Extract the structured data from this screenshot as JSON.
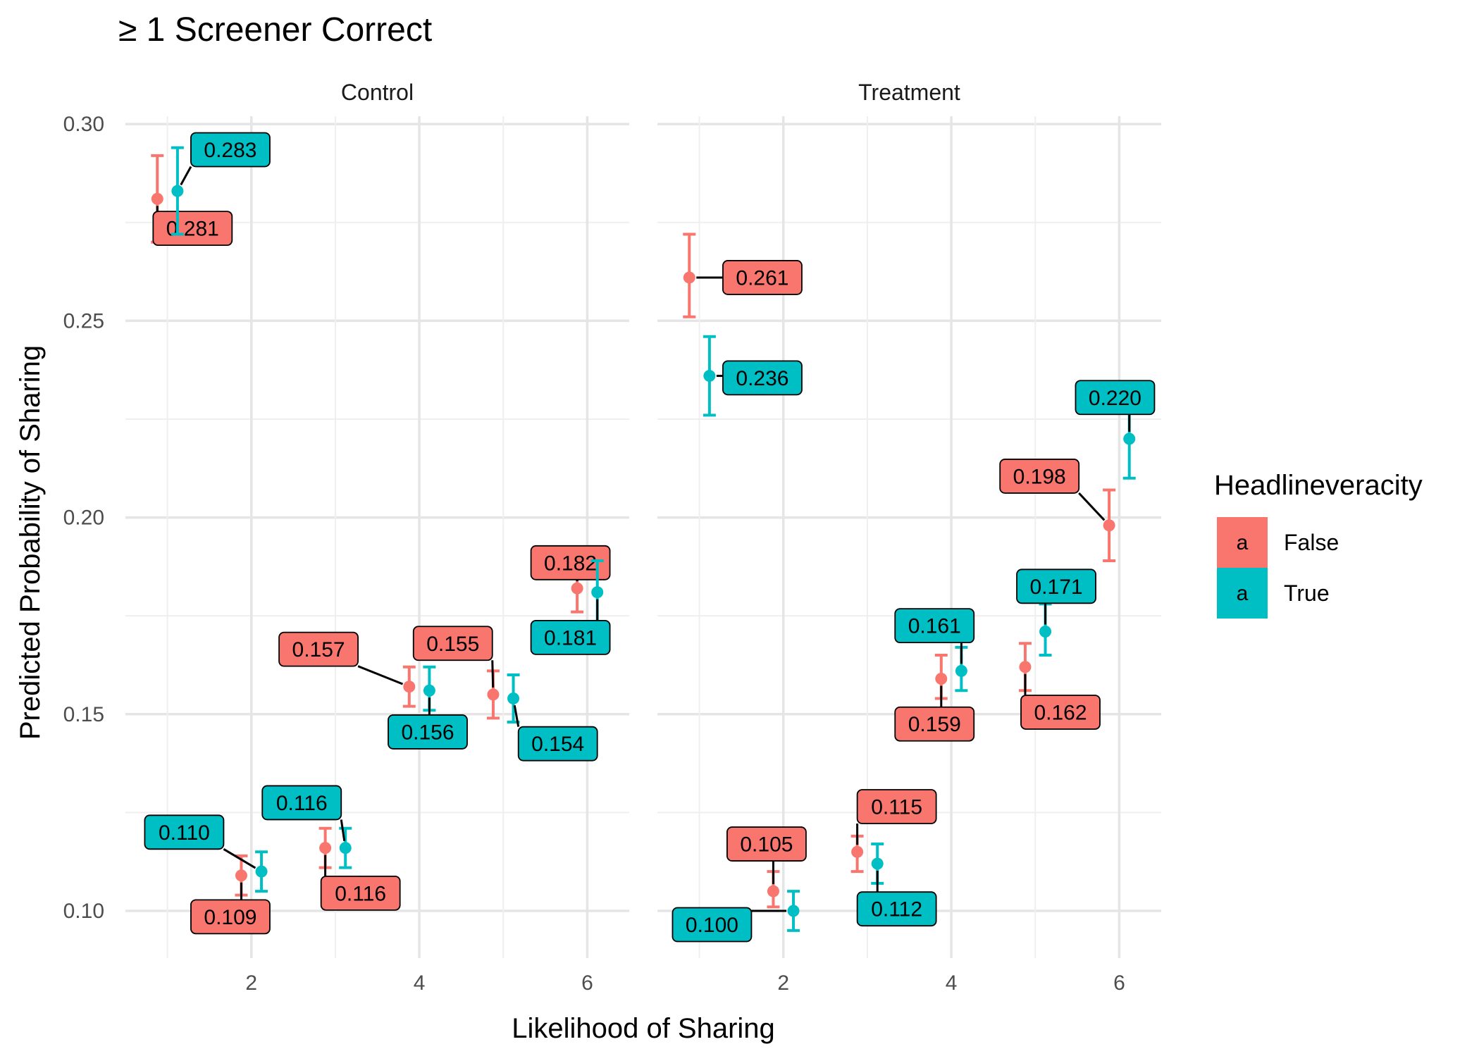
{
  "chart_data": {
    "type": "scatter",
    "title": "≥ 1 Screener Correct",
    "xlabel": "Likelihood of Sharing",
    "ylabel": "Predicted Probability of Sharing",
    "xlim": [
      0.5,
      6.5
    ],
    "ylim": [
      0.088,
      0.302
    ],
    "x_ticks": [
      2,
      4,
      6
    ],
    "x_tick_labels": [
      "2",
      "4",
      "6"
    ],
    "y_ticks": [
      0.1,
      0.15,
      0.2,
      0.25,
      0.3
    ],
    "y_tick_labels": [
      "0.10",
      "0.15",
      "0.20",
      "0.25",
      "0.30"
    ],
    "grid": true,
    "legend": {
      "title": "Headlineveracity",
      "position": "right",
      "key_letter": "a",
      "entries": [
        {
          "name": "False",
          "color": "#F8766D"
        },
        {
          "name": "True",
          "color": "#00BFC4"
        }
      ]
    },
    "panels": [
      {
        "name": "Control",
        "series": [
          {
            "name": "False",
            "color": "#F8766D",
            "points": [
              {
                "x": 1,
                "y": 0.281,
                "lo": 0.27,
                "hi": 0.292,
                "label": "0.281",
                "lx": 1.3,
                "ly": 0.2735
              },
              {
                "x": 2,
                "y": 0.109,
                "lo": 0.104,
                "hi": 0.114,
                "label": "0.109",
                "lx": 1.75,
                "ly": 0.0985
              },
              {
                "x": 3,
                "y": 0.116,
                "lo": 0.111,
                "hi": 0.121,
                "label": "0.116",
                "lx": 3.3,
                "ly": 0.1045
              },
              {
                "x": 4,
                "y": 0.157,
                "lo": 0.152,
                "hi": 0.162,
                "label": "0.157",
                "lx": 2.8,
                "ly": 0.1665
              },
              {
                "x": 5,
                "y": 0.155,
                "lo": 0.149,
                "hi": 0.161,
                "label": "0.155",
                "lx": 4.4,
                "ly": 0.168
              },
              {
                "x": 6,
                "y": 0.182,
                "lo": 0.176,
                "hi": 0.188,
                "label": "0.182",
                "lx": 5.8,
                "ly": 0.1885
              }
            ]
          },
          {
            "name": "True",
            "color": "#00BFC4",
            "points": [
              {
                "x": 1,
                "y": 0.283,
                "lo": 0.272,
                "hi": 0.294,
                "label": "0.283",
                "lx": 1.75,
                "ly": 0.2935
              },
              {
                "x": 2,
                "y": 0.11,
                "lo": 0.105,
                "hi": 0.115,
                "label": "0.110",
                "lx": 1.2,
                "ly": 0.12
              },
              {
                "x": 3,
                "y": 0.116,
                "lo": 0.111,
                "hi": 0.121,
                "label": "0.116",
                "lx": 2.6,
                "ly": 0.1275
              },
              {
                "x": 4,
                "y": 0.156,
                "lo": 0.151,
                "hi": 0.162,
                "label": "0.156",
                "lx": 4.1,
                "ly": 0.1455
              },
              {
                "x": 5,
                "y": 0.154,
                "lo": 0.148,
                "hi": 0.16,
                "label": "0.154",
                "lx": 5.65,
                "ly": 0.1425
              },
              {
                "x": 6,
                "y": 0.181,
                "lo": 0.172,
                "hi": 0.189,
                "label": "0.181",
                "lx": 5.8,
                "ly": 0.1695
              }
            ]
          }
        ]
      },
      {
        "name": "Treatment",
        "series": [
          {
            "name": "False",
            "color": "#F8766D",
            "points": [
              {
                "x": 1,
                "y": 0.261,
                "lo": 0.251,
                "hi": 0.272,
                "label": "0.261",
                "lx": 1.75,
                "ly": 0.261
              },
              {
                "x": 2,
                "y": 0.105,
                "lo": 0.101,
                "hi": 0.11,
                "label": "0.105",
                "lx": 1.8,
                "ly": 0.117
              },
              {
                "x": 3,
                "y": 0.115,
                "lo": 0.11,
                "hi": 0.119,
                "label": "0.115",
                "lx": 3.35,
                "ly": 0.1265
              },
              {
                "x": 4,
                "y": 0.159,
                "lo": 0.154,
                "hi": 0.165,
                "label": "0.159",
                "lx": 3.8,
                "ly": 0.1475
              },
              {
                "x": 5,
                "y": 0.162,
                "lo": 0.156,
                "hi": 0.168,
                "label": "0.162",
                "lx": 5.3,
                "ly": 0.1505
              },
              {
                "x": 6,
                "y": 0.198,
                "lo": 0.189,
                "hi": 0.207,
                "label": "0.198",
                "lx": 5.05,
                "ly": 0.2105
              }
            ]
          },
          {
            "name": "True",
            "color": "#00BFC4",
            "points": [
              {
                "x": 1,
                "y": 0.236,
                "lo": 0.226,
                "hi": 0.246,
                "label": "0.236",
                "lx": 1.75,
                "ly": 0.2355
              },
              {
                "x": 2,
                "y": 0.1,
                "lo": 0.095,
                "hi": 0.105,
                "label": "0.100",
                "lx": 1.15,
                "ly": 0.0965
              },
              {
                "x": 3,
                "y": 0.112,
                "lo": 0.107,
                "hi": 0.117,
                "label": "0.112",
                "lx": 3.35,
                "ly": 0.1005
              },
              {
                "x": 4,
                "y": 0.161,
                "lo": 0.156,
                "hi": 0.167,
                "label": "0.161",
                "lx": 3.8,
                "ly": 0.1725
              },
              {
                "x": 5,
                "y": 0.171,
                "lo": 0.165,
                "hi": 0.178,
                "label": "0.171",
                "lx": 5.25,
                "ly": 0.1825
              },
              {
                "x": 6,
                "y": 0.22,
                "lo": 0.21,
                "hi": 0.23,
                "label": "0.220",
                "lx": 5.95,
                "ly": 0.2305
              }
            ]
          }
        ]
      }
    ]
  }
}
